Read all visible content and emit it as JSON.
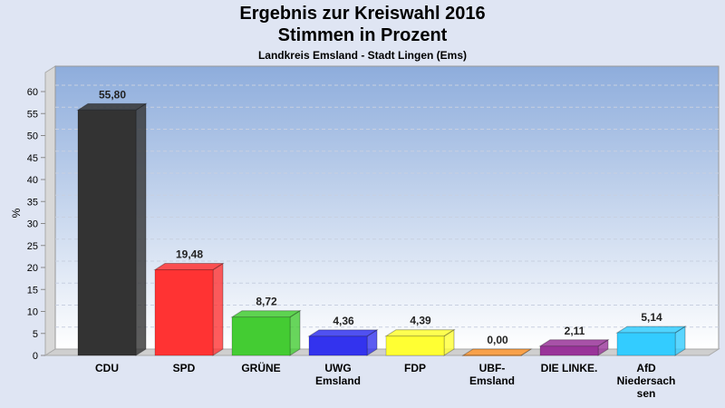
{
  "chart_data": {
    "type": "bar",
    "title": "Ergebnis zur Kreiswahl 2016",
    "subtitle": "Stimmen in Prozent",
    "caption": "Landkreis Emsland - Stadt Lingen (Ems)",
    "ylabel": "%",
    "xlabel": "",
    "ylim": [
      0,
      60
    ],
    "yticks": [
      0,
      5,
      10,
      15,
      20,
      25,
      30,
      35,
      40,
      45,
      50,
      55,
      60
    ],
    "grid": true,
    "categories": [
      [
        "CDU"
      ],
      [
        "SPD"
      ],
      [
        "GRÜNE"
      ],
      [
        "UWG",
        "Emsland"
      ],
      [
        "FDP"
      ],
      [
        "UBF-",
        "Emsland"
      ],
      [
        "DIE LINKE."
      ],
      [
        "AfD",
        "Niedersach",
        "sen"
      ]
    ],
    "values": [
      55.8,
      19.48,
      8.72,
      4.36,
      4.39,
      0.0,
      2.11,
      5.14
    ],
    "labels": [
      "55,80",
      "19,48",
      "8,72",
      "4,36",
      "4,39",
      "0,00",
      "2,11",
      "5,14"
    ],
    "colors": [
      "#333333",
      "#ff3333",
      "#44cc33",
      "#3333ee",
      "#ffff33",
      "#ff9933",
      "#993399",
      "#33ccff"
    ]
  }
}
